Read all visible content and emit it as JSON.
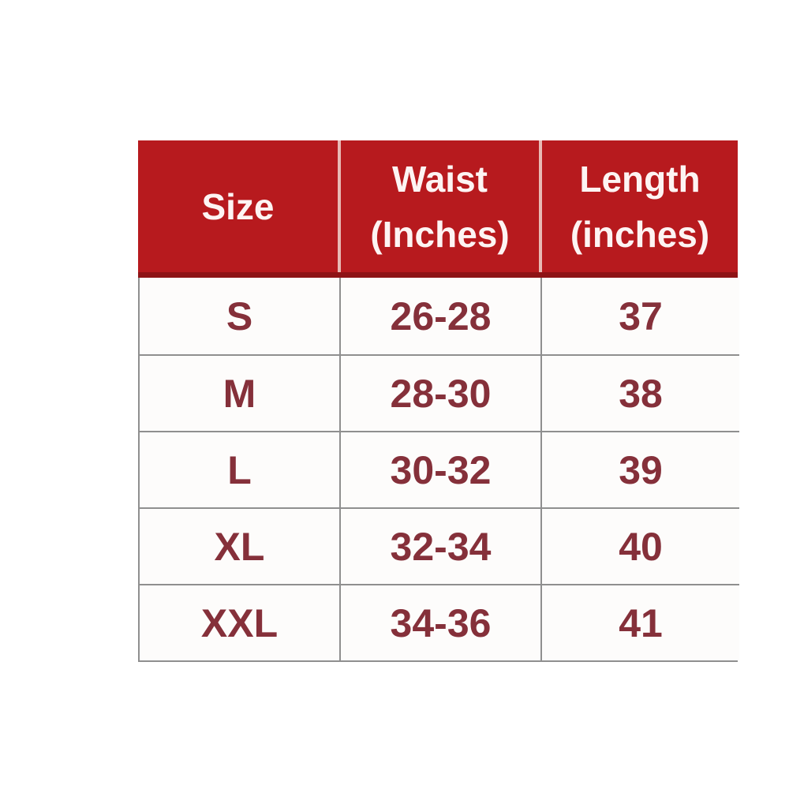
{
  "table": {
    "header": [
      {
        "line1": "Size",
        "line2": ""
      },
      {
        "line1": "Waist",
        "line2": "(Inches)"
      },
      {
        "line1": "Length",
        "line2": "(inches)"
      }
    ],
    "rows": [
      {
        "size": "S",
        "waist": "26-28",
        "length": "37"
      },
      {
        "size": "M",
        "waist": "28-30",
        "length": "38"
      },
      {
        "size": "L",
        "waist": "30-32",
        "length": "39"
      },
      {
        "size": "XL",
        "waist": "32-34",
        "length": "40"
      },
      {
        "size": "XXL",
        "waist": "34-36",
        "length": "41"
      }
    ]
  },
  "chart_data": {
    "type": "table",
    "title": "",
    "columns": [
      "Size",
      "Waist (Inches)",
      "Length (inches)"
    ],
    "rows": [
      [
        "S",
        "26-28",
        "37"
      ],
      [
        "M",
        "28-30",
        "38"
      ],
      [
        "L",
        "30-32",
        "39"
      ],
      [
        "XL",
        "32-34",
        "40"
      ],
      [
        "XXL",
        "34-36",
        "41"
      ]
    ]
  },
  "colors": {
    "header_bg": "#b71a1e",
    "header_bg_dark_edge": "#8e1316",
    "header_text": "#fdf4f3",
    "header_separator": "#e8b9b4",
    "body_text": "#85303a",
    "grid_border": "#8f8f8f",
    "cell_bg": "#fdfcfb",
    "page_bg": "#ffffff"
  }
}
